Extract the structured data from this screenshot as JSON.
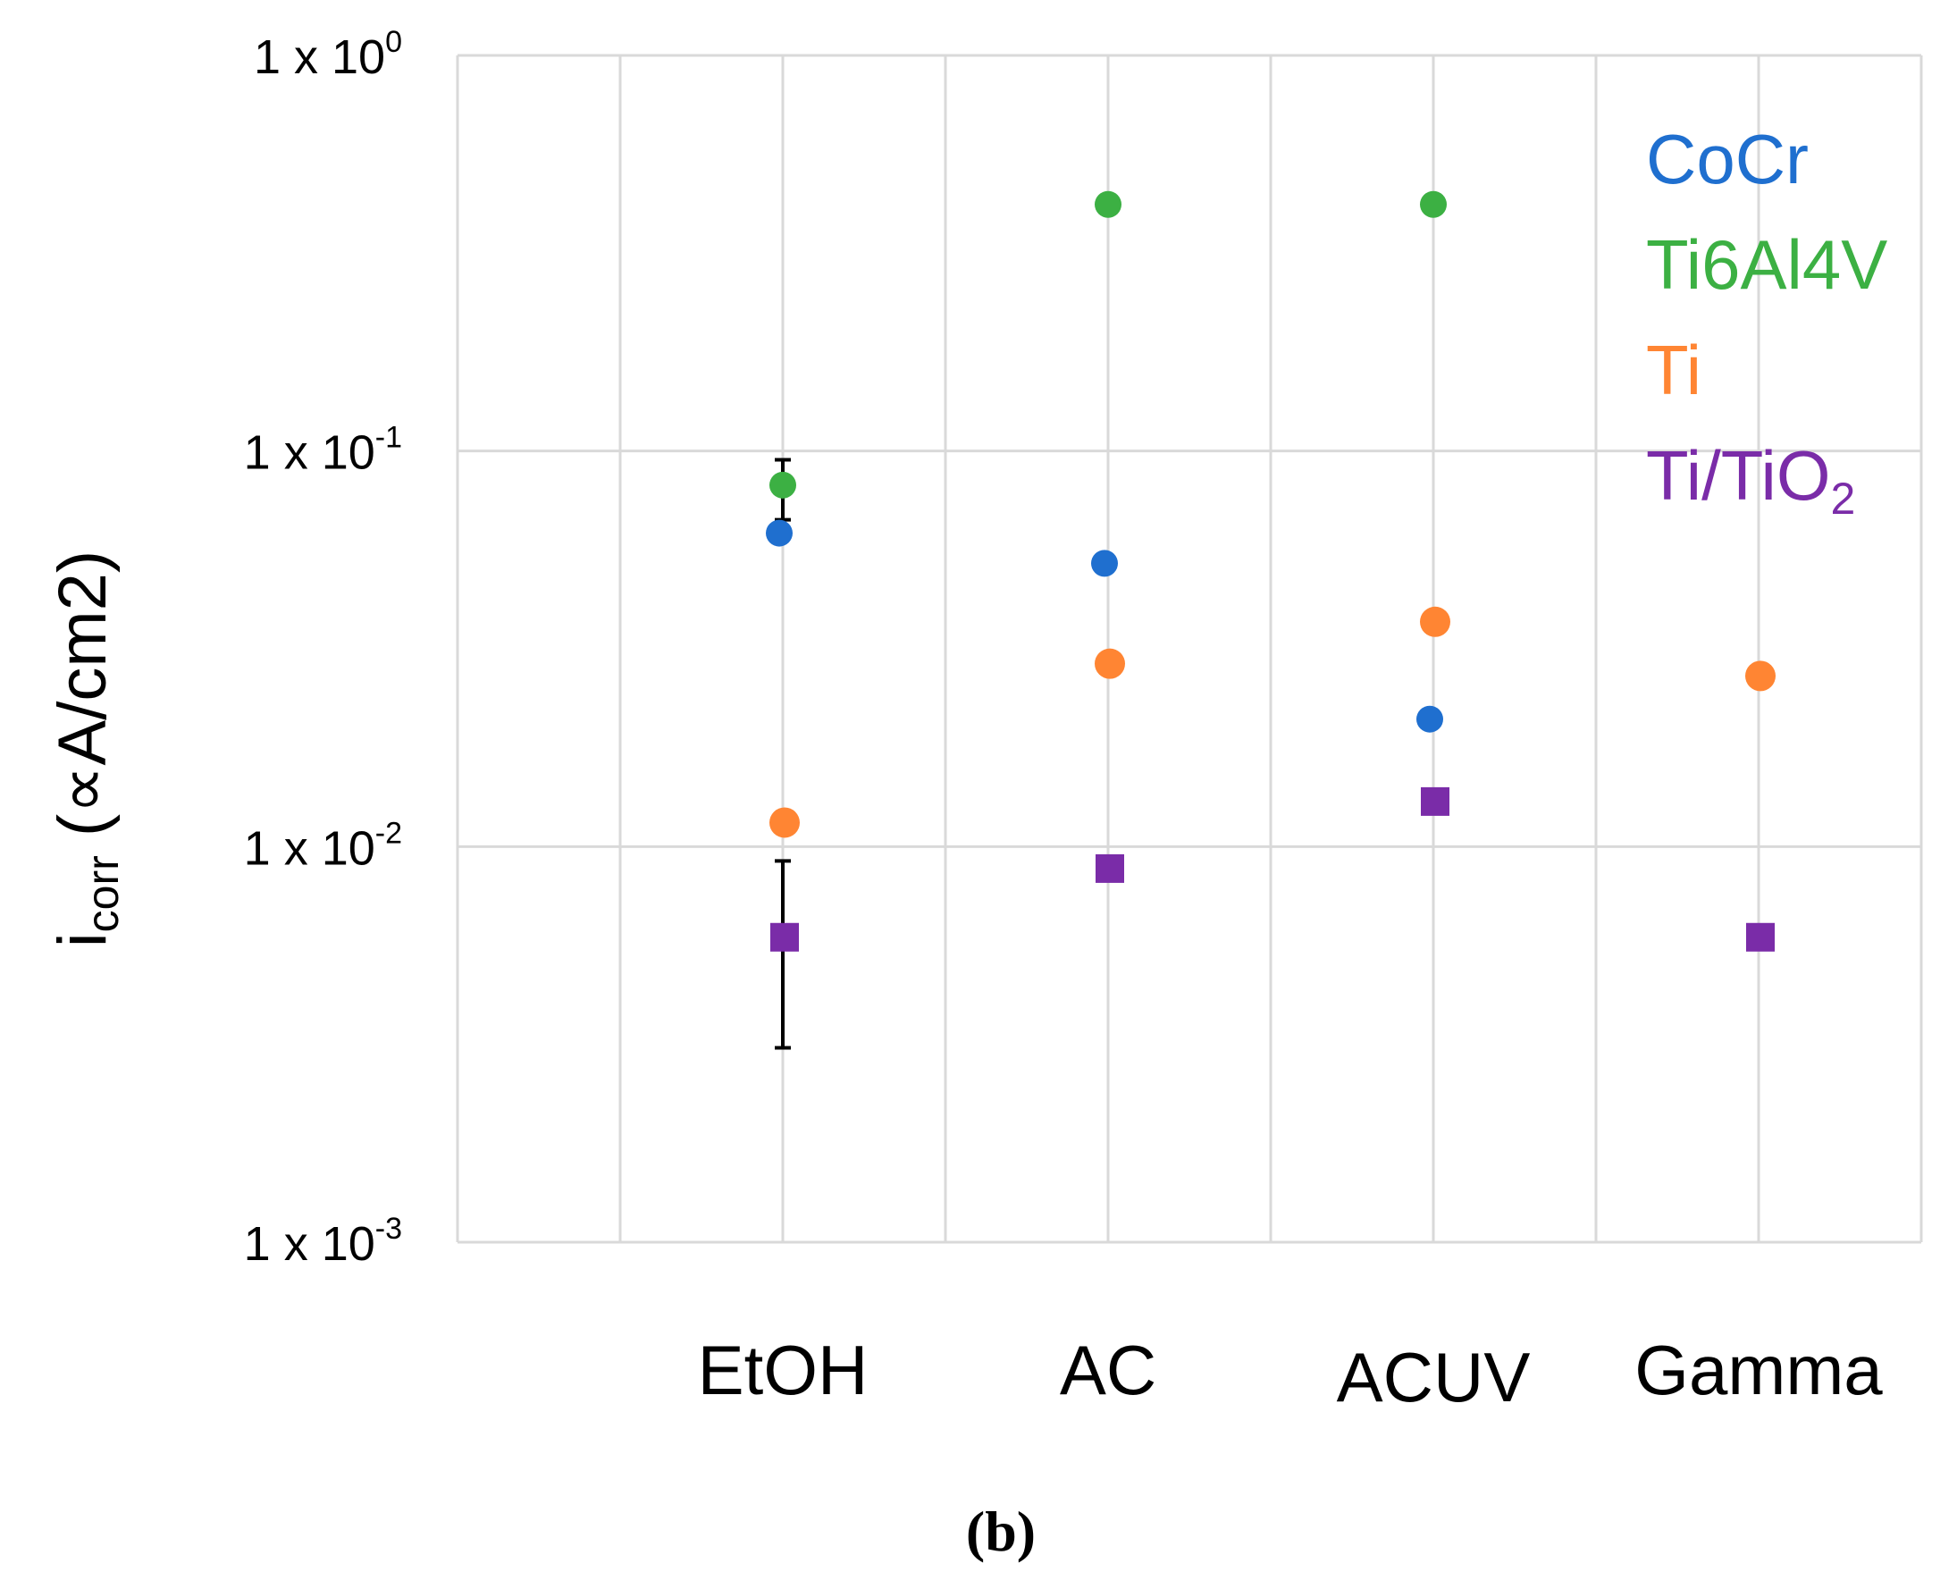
{
  "chart_data": {
    "type": "scatter",
    "title": "",
    "xlabel": "",
    "ylabel": "icorr (∝A/cm2)",
    "ylabel_parts": {
      "main": "i",
      "sub": "corr",
      "rest": " (∝A/cm2)"
    },
    "yscale": "log",
    "ylim": [
      0.001,
      1
    ],
    "yticks": [
      {
        "value": 1,
        "base": "1 x 10",
        "exp": "0"
      },
      {
        "value": 0.1,
        "base": "1 x 10",
        "exp": "-1"
      },
      {
        "value": 0.01,
        "base": "1 x 10",
        "exp": "-2"
      },
      {
        "value": 0.001,
        "base": "1 x 10",
        "exp": "-3"
      }
    ],
    "categories": [
      "EtOH",
      "AC",
      "ACUV",
      "Gamma"
    ],
    "grid": true,
    "legend_position": "top-right",
    "series": [
      {
        "name": "CoCr",
        "color": "#1f6fcf",
        "marker": "circle",
        "values": [
          0.062,
          0.052,
          0.021,
          null
        ]
      },
      {
        "name": "Ti6Al4V",
        "color": "#3cb043",
        "marker": "circle",
        "values": [
          0.082,
          0.42,
          0.42,
          null
        ]
      },
      {
        "name": "Ti",
        "color": "#ff8533",
        "marker": "circle",
        "values": [
          0.0115,
          0.029,
          0.037,
          0.027
        ]
      },
      {
        "name": "Ti/TiO2",
        "label_main": "Ti/TiO",
        "label_sub": "2",
        "color": "#7a2ca8",
        "marker": "square",
        "values": [
          0.0059,
          0.0088,
          0.013,
          0.0059
        ]
      }
    ],
    "error_bars": [
      {
        "series": "Ti6Al4V",
        "category": "EtOH",
        "low": 0.067,
        "high": 0.095
      },
      {
        "series": "Ti/TiO2",
        "category": "EtOH",
        "low": 0.0031,
        "high": 0.0092
      }
    ],
    "panel_label": "(b)"
  }
}
